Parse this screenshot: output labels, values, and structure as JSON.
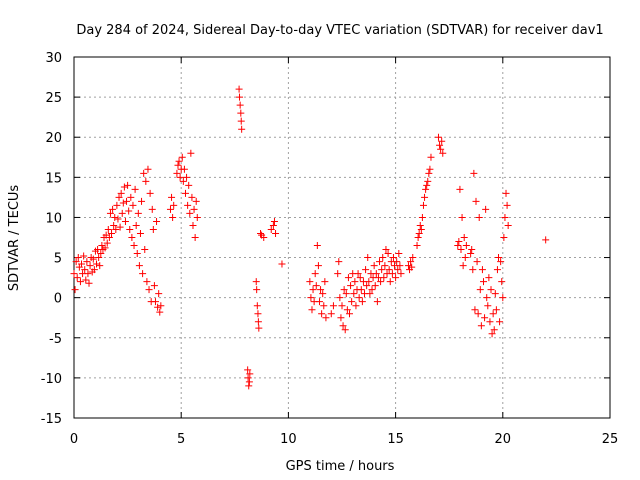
{
  "chart_data": {
    "type": "scatter",
    "title": "Day 284 of 2024, Sidereal Day-to-day VTEC variation (SDTVAR) for receiver dav1",
    "xlabel": "GPS time / hours",
    "ylabel": "SDTVAR / TECUs",
    "xlim": [
      0,
      25
    ],
    "ylim": [
      -15,
      30
    ],
    "x_ticks": [
      0,
      5,
      10,
      15,
      20,
      25
    ],
    "y_ticks": [
      -15,
      -10,
      -5,
      0,
      5,
      10,
      15,
      20,
      25,
      30
    ],
    "x_tick_labels": [
      "0",
      "5",
      "10",
      "15",
      "20",
      "25"
    ],
    "y_tick_labels": [
      "-15",
      "-10",
      "-5",
      "0",
      "5",
      "10",
      "15",
      "20",
      "25",
      "30"
    ],
    "grid": true,
    "marker": "+",
    "series": [
      {
        "name": "SDTVAR",
        "color": "#ff0000",
        "points": [
          [
            0.0,
            3.0
          ],
          [
            0.05,
            1.0
          ],
          [
            0.1,
            4.5
          ],
          [
            0.15,
            2.5
          ],
          [
            0.2,
            5.0
          ],
          [
            0.25,
            3.8
          ],
          [
            0.3,
            2.0
          ],
          [
            0.35,
            4.2
          ],
          [
            0.4,
            3.0
          ],
          [
            0.45,
            5.2
          ],
          [
            0.5,
            3.5
          ],
          [
            0.55,
            2.2
          ],
          [
            0.6,
            4.5
          ],
          [
            0.65,
            3.0
          ],
          [
            0.7,
            1.8
          ],
          [
            0.75,
            4.0
          ],
          [
            0.8,
            5.0
          ],
          [
            0.85,
            3.2
          ],
          [
            0.9,
            4.8
          ],
          [
            0.95,
            3.5
          ],
          [
            1.0,
            5.8
          ],
          [
            1.05,
            4.2
          ],
          [
            1.1,
            6.0
          ],
          [
            1.15,
            5.0
          ],
          [
            1.2,
            4.0
          ],
          [
            1.25,
            5.5
          ],
          [
            1.3,
            6.5
          ],
          [
            1.35,
            6.0
          ],
          [
            1.4,
            7.5
          ],
          [
            1.45,
            6.2
          ],
          [
            1.5,
            7.8
          ],
          [
            1.55,
            6.8
          ],
          [
            1.6,
            8.5
          ],
          [
            1.65,
            7.5
          ],
          [
            1.7,
            10.5
          ],
          [
            1.75,
            8.0
          ],
          [
            1.8,
            11.0
          ],
          [
            1.85,
            9.0
          ],
          [
            1.9,
            10.0
          ],
          [
            1.95,
            8.5
          ],
          [
            2.0,
            11.5
          ],
          [
            2.05,
            9.8
          ],
          [
            2.1,
            12.5
          ],
          [
            2.15,
            8.8
          ],
          [
            2.2,
            13.0
          ],
          [
            2.25,
            10.5
          ],
          [
            2.3,
            11.8
          ],
          [
            2.35,
            13.8
          ],
          [
            2.4,
            9.5
          ],
          [
            2.45,
            12.0
          ],
          [
            2.5,
            14.0
          ],
          [
            2.55,
            10.8
          ],
          [
            2.6,
            8.5
          ],
          [
            2.65,
            12.5
          ],
          [
            2.7,
            7.5
          ],
          [
            2.75,
            11.5
          ],
          [
            2.8,
            6.5
          ],
          [
            2.85,
            13.5
          ],
          [
            2.9,
            9.0
          ],
          [
            2.95,
            5.5
          ],
          [
            3.0,
            10.5
          ],
          [
            3.05,
            4.0
          ],
          [
            3.1,
            8.0
          ],
          [
            3.15,
            12.0
          ],
          [
            3.2,
            3.0
          ],
          [
            3.25,
            15.5
          ],
          [
            3.3,
            6.0
          ],
          [
            3.35,
            14.5
          ],
          [
            3.4,
            2.0
          ],
          [
            3.45,
            16.0
          ],
          [
            3.5,
            1.0
          ],
          [
            3.55,
            13.0
          ],
          [
            3.6,
            -0.5
          ],
          [
            3.65,
            11.0
          ],
          [
            3.7,
            8.5
          ],
          [
            3.75,
            1.5
          ],
          [
            3.8,
            -0.5
          ],
          [
            3.85,
            9.5
          ],
          [
            3.9,
            -1.2
          ],
          [
            3.95,
            0.5
          ],
          [
            4.0,
            -1.8
          ],
          [
            4.05,
            -1.0
          ],
          [
            4.5,
            11.0
          ],
          [
            4.55,
            12.5
          ],
          [
            4.6,
            10.0
          ],
          [
            4.65,
            11.5
          ],
          [
            4.8,
            15.5
          ],
          [
            4.85,
            16.5
          ],
          [
            4.9,
            17.0
          ],
          [
            4.95,
            15.0
          ],
          [
            5.0,
            16.0
          ],
          [
            5.05,
            17.5
          ],
          [
            5.1,
            14.5
          ],
          [
            5.15,
            16.0
          ],
          [
            5.2,
            13.0
          ],
          [
            5.25,
            15.0
          ],
          [
            5.3,
            11.5
          ],
          [
            5.35,
            14.0
          ],
          [
            5.4,
            10.5
          ],
          [
            5.45,
            18.0
          ],
          [
            5.5,
            12.5
          ],
          [
            5.55,
            9.0
          ],
          [
            5.6,
            11.0
          ],
          [
            5.65,
            7.5
          ],
          [
            5.7,
            12.0
          ],
          [
            5.75,
            10.0
          ],
          [
            7.7,
            26.0
          ],
          [
            7.72,
            25.0
          ],
          [
            7.75,
            24.0
          ],
          [
            7.78,
            23.0
          ],
          [
            7.8,
            22.0
          ],
          [
            7.82,
            21.0
          ],
          [
            8.1,
            -9.0
          ],
          [
            8.12,
            -10.0
          ],
          [
            8.15,
            -11.0
          ],
          [
            8.18,
            -10.5
          ],
          [
            8.2,
            -9.5
          ],
          [
            8.5,
            2.0
          ],
          [
            8.52,
            1.0
          ],
          [
            8.55,
            -1.0
          ],
          [
            8.58,
            -2.0
          ],
          [
            8.6,
            -3.0
          ],
          [
            8.62,
            -3.8
          ],
          [
            8.7,
            8.0
          ],
          [
            8.75,
            7.8
          ],
          [
            8.85,
            7.5
          ],
          [
            9.2,
            8.5
          ],
          [
            9.3,
            9.0
          ],
          [
            9.35,
            9.5
          ],
          [
            9.4,
            8.0
          ],
          [
            9.7,
            4.2
          ],
          [
            11.0,
            2.0
          ],
          [
            11.05,
            0.0
          ],
          [
            11.1,
            -1.5
          ],
          [
            11.15,
            1.0
          ],
          [
            11.2,
            -0.5
          ],
          [
            11.25,
            3.0
          ],
          [
            11.3,
            1.5
          ],
          [
            11.35,
            6.5
          ],
          [
            11.4,
            4.0
          ],
          [
            11.45,
            -0.5
          ],
          [
            11.5,
            1.0
          ],
          [
            11.55,
            -2.0
          ],
          [
            11.6,
            0.5
          ],
          [
            11.65,
            -1.0
          ],
          [
            11.7,
            2.0
          ],
          [
            11.75,
            -2.5
          ],
          [
            12.0,
            -2.0
          ],
          [
            12.1,
            -1.0
          ],
          [
            12.3,
            3.0
          ],
          [
            12.35,
            4.5
          ],
          [
            12.4,
            0.0
          ],
          [
            12.45,
            -2.5
          ],
          [
            12.5,
            -1.0
          ],
          [
            12.55,
            -3.5
          ],
          [
            12.6,
            1.0
          ],
          [
            12.65,
            -4.0
          ],
          [
            12.7,
            0.5
          ],
          [
            12.75,
            -1.5
          ],
          [
            12.8,
            2.5
          ],
          [
            12.85,
            -2.0
          ],
          [
            12.9,
            1.5
          ],
          [
            12.95,
            -0.5
          ],
          [
            13.0,
            3.0
          ],
          [
            13.05,
            0.5
          ],
          [
            13.1,
            2.0
          ],
          [
            13.15,
            -1.0
          ],
          [
            13.2,
            1.0
          ],
          [
            13.25,
            3.0
          ],
          [
            13.3,
            0.0
          ],
          [
            13.35,
            2.5
          ],
          [
            13.4,
            1.0
          ],
          [
            13.45,
            -0.5
          ],
          [
            13.5,
            2.0
          ],
          [
            13.55,
            0.5
          ],
          [
            13.6,
            3.5
          ],
          [
            13.65,
            1.5
          ],
          [
            13.7,
            5.0
          ],
          [
            13.75,
            2.0
          ],
          [
            13.8,
            0.5
          ],
          [
            13.85,
            3.0
          ],
          [
            13.9,
            1.0
          ],
          [
            13.95,
            2.5
          ],
          [
            14.0,
            4.0
          ],
          [
            14.05,
            1.5
          ],
          [
            14.1,
            3.0
          ],
          [
            14.15,
            -0.5
          ],
          [
            14.2,
            2.5
          ],
          [
            14.25,
            4.5
          ],
          [
            14.3,
            2.0
          ],
          [
            14.35,
            3.5
          ],
          [
            14.4,
            5.0
          ],
          [
            14.45,
            2.5
          ],
          [
            14.5,
            4.0
          ],
          [
            14.55,
            6.0
          ],
          [
            14.6,
            3.0
          ],
          [
            14.65,
            5.5
          ],
          [
            14.7,
            3.5
          ],
          [
            14.75,
            2.0
          ],
          [
            14.8,
            4.5
          ],
          [
            14.85,
            3.0
          ],
          [
            14.9,
            5.0
          ],
          [
            14.95,
            4.0
          ],
          [
            15.0,
            2.5
          ],
          [
            15.05,
            4.5
          ],
          [
            15.1,
            3.5
          ],
          [
            15.15,
            5.5
          ],
          [
            15.2,
            4.0
          ],
          [
            15.25,
            3.0
          ],
          [
            15.6,
            4.0
          ],
          [
            15.65,
            3.5
          ],
          [
            15.7,
            4.5
          ],
          [
            15.75,
            3.8
          ],
          [
            15.8,
            5.0
          ],
          [
            16.0,
            6.5
          ],
          [
            16.05,
            7.5
          ],
          [
            16.1,
            8.0
          ],
          [
            16.15,
            9.0
          ],
          [
            16.2,
            8.5
          ],
          [
            16.25,
            10.0
          ],
          [
            16.3,
            11.5
          ],
          [
            16.35,
            12.5
          ],
          [
            16.4,
            13.5
          ],
          [
            16.45,
            14.0
          ],
          [
            16.5,
            14.5
          ],
          [
            16.55,
            15.5
          ],
          [
            16.6,
            16.0
          ],
          [
            16.65,
            17.5
          ],
          [
            17.0,
            20.0
          ],
          [
            17.05,
            19.0
          ],
          [
            17.1,
            18.5
          ],
          [
            17.15,
            19.5
          ],
          [
            17.2,
            18.0
          ],
          [
            17.9,
            6.5
          ],
          [
            17.95,
            7.0
          ],
          [
            18.0,
            13.5
          ],
          [
            18.05,
            6.0
          ],
          [
            18.1,
            10.0
          ],
          [
            18.15,
            4.0
          ],
          [
            18.2,
            7.5
          ],
          [
            18.25,
            5.0
          ],
          [
            18.3,
            6.5
          ],
          [
            18.5,
            5.5
          ],
          [
            18.55,
            6.0
          ],
          [
            18.6,
            3.5
          ],
          [
            18.65,
            15.5
          ],
          [
            18.7,
            -1.5
          ],
          [
            18.75,
            12.0
          ],
          [
            18.8,
            4.5
          ],
          [
            18.85,
            -2.0
          ],
          [
            18.9,
            10.0
          ],
          [
            18.95,
            1.0
          ],
          [
            19.0,
            -3.5
          ],
          [
            19.05,
            3.5
          ],
          [
            19.1,
            2.0
          ],
          [
            19.15,
            -2.5
          ],
          [
            19.2,
            11.0
          ],
          [
            19.25,
            0.0
          ],
          [
            19.3,
            -1.0
          ],
          [
            19.35,
            2.5
          ],
          [
            19.4,
            -3.0
          ],
          [
            19.45,
            1.0
          ],
          [
            19.5,
            -4.5
          ],
          [
            19.55,
            -2.0
          ],
          [
            19.6,
            -4.0
          ],
          [
            19.65,
            0.5
          ],
          [
            19.7,
            -1.5
          ],
          [
            19.75,
            3.5
          ],
          [
            19.8,
            5.0
          ],
          [
            19.85,
            -3.0
          ],
          [
            19.9,
            4.5
          ],
          [
            19.95,
            2.0
          ],
          [
            20.0,
            0.0
          ],
          [
            20.05,
            7.5
          ],
          [
            20.1,
            10.0
          ],
          [
            20.15,
            13.0
          ],
          [
            20.2,
            11.5
          ],
          [
            20.25,
            9.0
          ],
          [
            22.0,
            7.2
          ]
        ]
      }
    ]
  }
}
